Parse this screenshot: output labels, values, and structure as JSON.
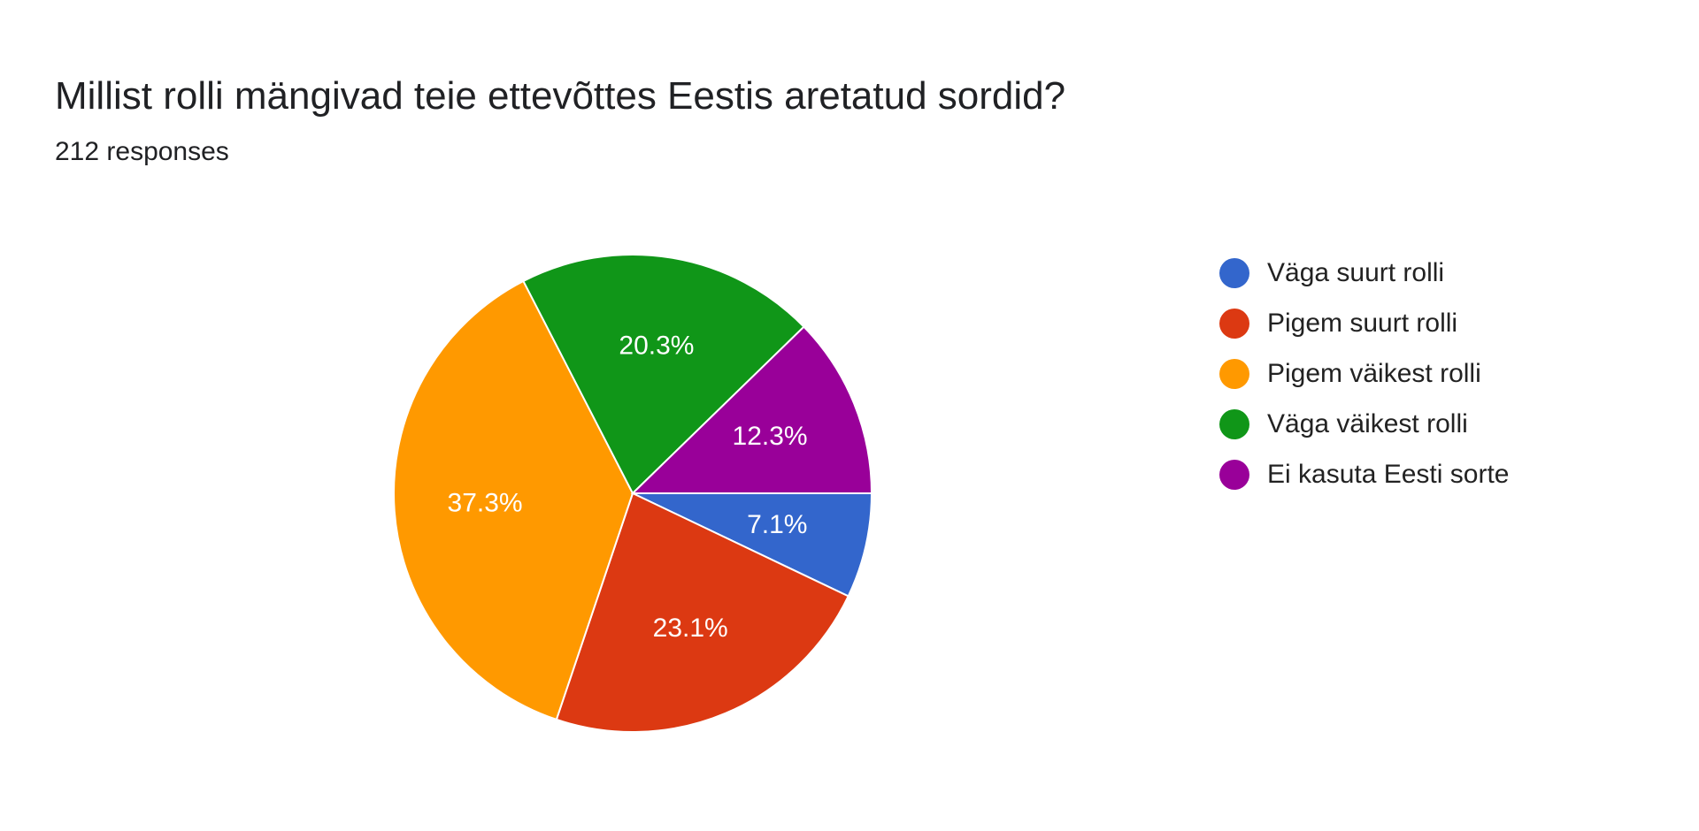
{
  "chart_data": {
    "type": "pie",
    "title": "Millist rolli mängivad teie ettevõttes Eestis aretatud sordid?",
    "subtitle": "212 responses",
    "categories": [
      "Väga suurt rolli",
      "Pigem suurt rolli",
      "Pigem väikest rolli",
      "Väga väikest rolli",
      "Ei kasuta Eesti sorte"
    ],
    "values": [
      7.1,
      23.1,
      37.3,
      20.3,
      12.3
    ],
    "labels": [
      "7.1%",
      "23.1%",
      "37.3%",
      "20.3%",
      "12.3%"
    ],
    "colors": [
      "#3366cc",
      "#dc3912",
      "#ff9900",
      "#109618",
      "#990099"
    ],
    "legend_position": "right"
  }
}
